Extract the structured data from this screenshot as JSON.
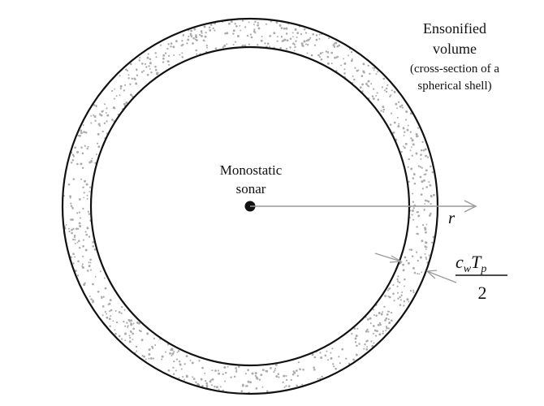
{
  "diagram": {
    "source_label": [
      "Monostatic",
      "sonar"
    ],
    "volume_label": [
      "Ensonified",
      "volume",
      "(cross-section of a",
      "spherical shell)"
    ],
    "radius_label": "r",
    "thickness_label": {
      "numerator_main": "c",
      "numerator_sub1": "w",
      "numerator_mid": "T",
      "numerator_sub2": "p",
      "denominator": "2"
    },
    "colors": {
      "ring_stroke": "#111111",
      "arrow": "#999999",
      "stipple": "#aaaaaa",
      "source_dot": "#111111"
    }
  }
}
